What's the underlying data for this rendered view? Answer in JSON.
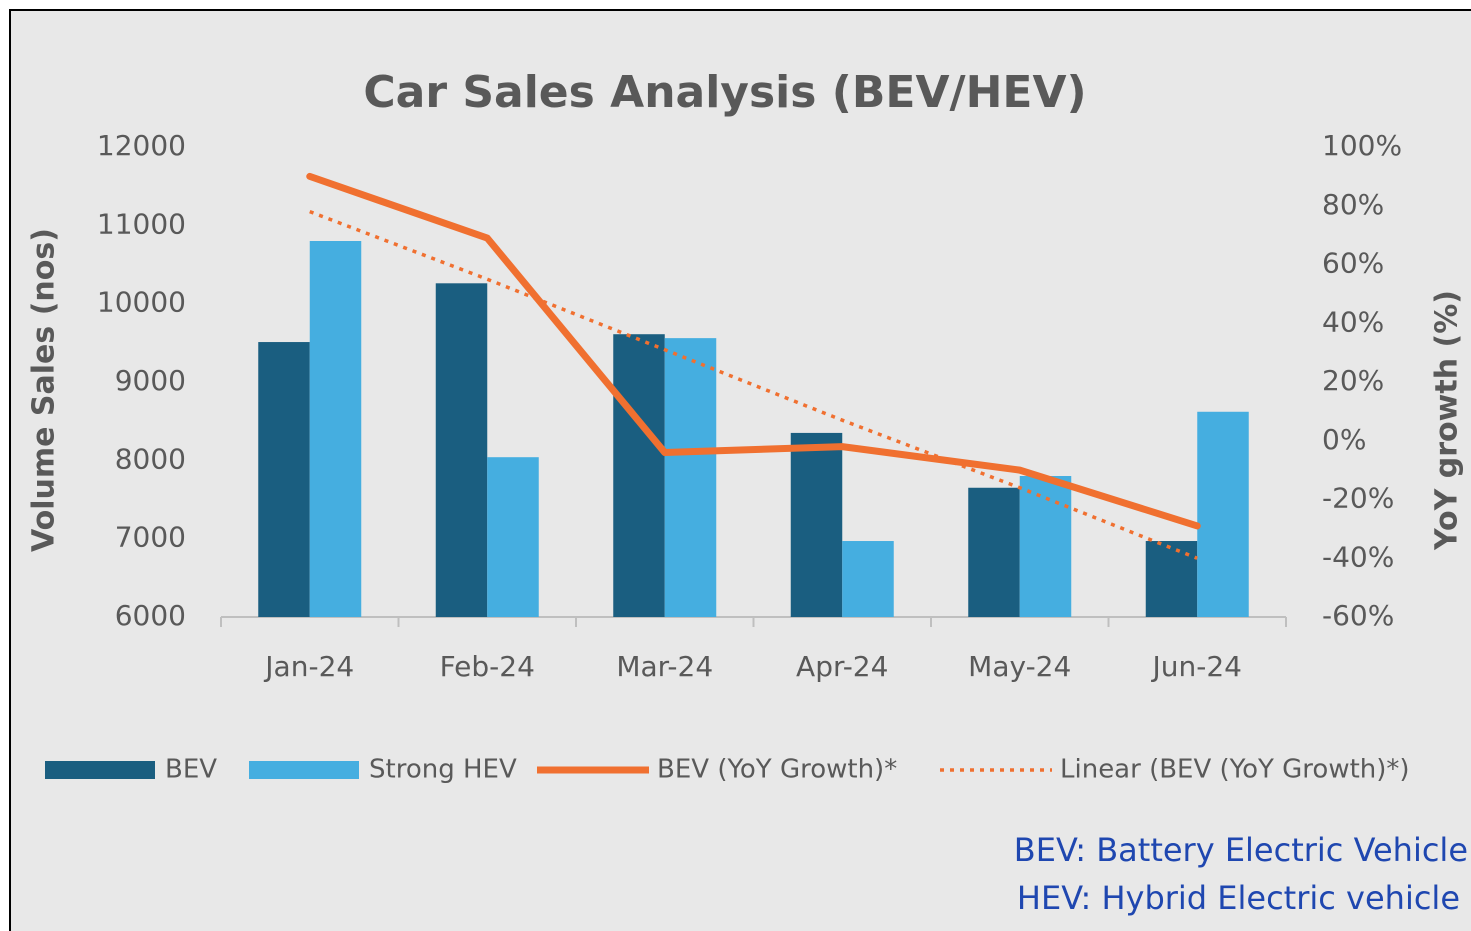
{
  "chart_data": {
    "type": "bar",
    "title": "Car Sales Analysis (BEV/HEV)",
    "y_label": "Volume Sales (nos)",
    "y2_label": "YoY growth (%)",
    "categories": [
      "Jan-24",
      "Feb-24",
      "Mar-24",
      "Apr-24",
      "May-24",
      "Jun-24"
    ],
    "series": [
      {
        "name": "BEV",
        "color": "#1a5e80",
        "type": "bar",
        "values": [
          9510,
          10260,
          9610,
          8350,
          7650,
          6970
        ]
      },
      {
        "name": "Strong HEV",
        "color": "#45aee0",
        "type": "bar",
        "values": [
          10800,
          8040,
          9560,
          6970,
          7800,
          8620
        ]
      },
      {
        "name": "BEV (YoY Growth)*",
        "color": "#f07030",
        "type": "line",
        "axis": "y2",
        "values": [
          90,
          69,
          -4,
          -2,
          -10,
          -29
        ]
      },
      {
        "name": "Linear (BEV (YoY Growth)*)",
        "color": "#f07030",
        "type": "line",
        "dashed": true,
        "axis": "y2",
        "values": [
          78,
          55,
          31,
          7,
          -16,
          -40
        ]
      }
    ],
    "ylim": [
      6000,
      12000
    ],
    "yticks": [
      6000,
      7000,
      8000,
      9000,
      10000,
      11000,
      12000
    ],
    "y2lim": [
      -60,
      100
    ],
    "y2ticks": [
      {
        "value": -60,
        "label": "-60%"
      },
      {
        "value": -40,
        "label": "-40%"
      },
      {
        "value": -20,
        "label": "-20%"
      },
      {
        "value": 0,
        "label": "0%"
      },
      {
        "value": 20,
        "label": "20%"
      },
      {
        "value": 40,
        "label": "40%"
      },
      {
        "value": 60,
        "label": "60%"
      },
      {
        "value": 80,
        "label": "80%"
      },
      {
        "value": 100,
        "label": "100%"
      }
    ],
    "grid": false,
    "legend": "bottom",
    "notes": [
      "BEV: Battery Electric Vehicle",
      "HEV: Hybrid Electric vehicle"
    ]
  }
}
